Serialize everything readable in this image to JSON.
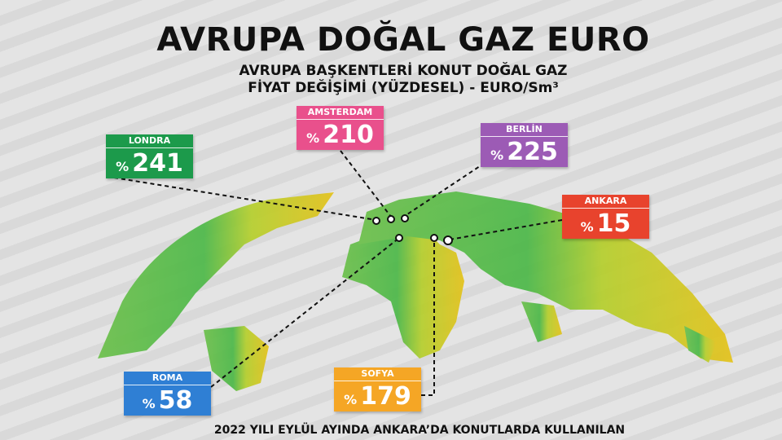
{
  "header": {
    "title": "AVRUPA DOĞAL GAZ EURO",
    "subtitle_lines": [
      "AVRUPA BAŞKENTLERİ KONUT DOĞAL GAZ",
      "FİYAT DEĞİŞİMİ (YÜZDESEL) - EURO/Sm³"
    ]
  },
  "cities": [
    {
      "name": "LONDRA",
      "prefix": "%",
      "value": "241",
      "color": "#1c9a4b"
    },
    {
      "name": "AMSTERDAM",
      "prefix": "%",
      "value": "210",
      "color": "#e9508c"
    },
    {
      "name": "BERLİN",
      "prefix": "%",
      "value": "225",
      "color": "#9c5bb5"
    },
    {
      "name": "ANKARA",
      "prefix": "%",
      "value": "15",
      "color": "#e8432d"
    },
    {
      "name": "ROMA",
      "prefix": "%",
      "value": "58",
      "color": "#2f7fd4"
    },
    {
      "name": "SOFYA",
      "prefix": "%",
      "value": "179",
      "color": "#f5a625"
    }
  ],
  "footer": "2022 YILI EYLÜL AYINDA ANKARA’DA KONUTLARDA KULLANILAN"
}
